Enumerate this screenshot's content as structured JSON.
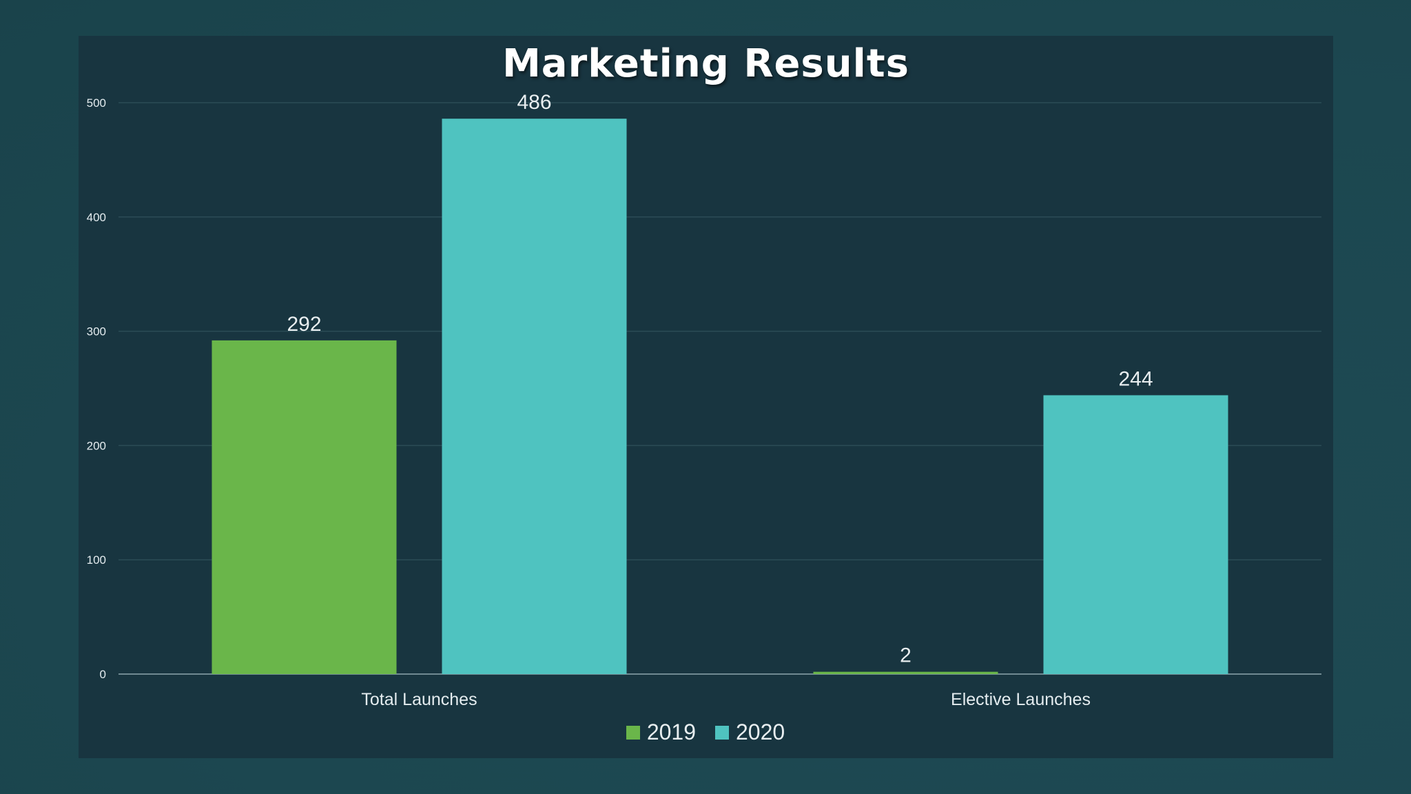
{
  "chart_data": {
    "type": "bar",
    "title": "Marketing Results",
    "categories": [
      "Total Launches",
      "Elective Launches"
    ],
    "series": [
      {
        "name": "2019",
        "values": [
          292,
          2
        ],
        "color": "#6ab64a"
      },
      {
        "name": "2020",
        "values": [
          486,
          244
        ],
        "color": "#4fc3c0"
      }
    ],
    "ylim": [
      0,
      500
    ],
    "yticks": [
      0,
      100,
      200,
      300,
      400,
      500
    ],
    "grid": true,
    "legend_position": "bottom",
    "data_labels": true
  },
  "colors": {
    "background": "#1f4a52",
    "panel": "#183540",
    "gridline": "#2b4c56",
    "axis": "#8ea7ae",
    "text": "#e4ecef"
  }
}
